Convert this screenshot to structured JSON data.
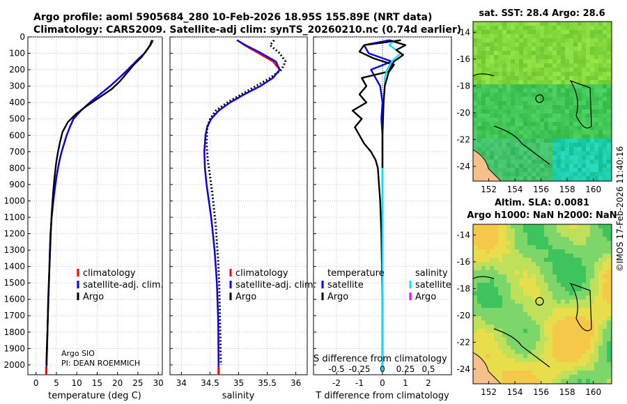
{
  "figure": {
    "title_line1": "Argo profile: aoml 5905684_280 10-Feb-2026 18.95S 155.89E (NRT data)",
    "title_line2": "Climatology: CARS2009. Satellite-adj clim: synTS_20260210.nc (0.74d earlier)",
    "credit": "©IMOS 17-Feb-2026 11:40:16",
    "float_info": [
      "Argo SIO",
      "PI: DEAN ROEMMICH"
    ]
  },
  "colors": {
    "climatology": "#ff0000",
    "satellite": "#0000ff",
    "argo": "#000000",
    "sat_salinity": "#00e5ff",
    "argo_salinity": "#ff00ff"
  },
  "chart_data": [
    {
      "type": "line",
      "id": "temperature",
      "xlabel": "temperature (deg C)",
      "ylabel": "",
      "xlim": [
        -2,
        31
      ],
      "ylim": [
        2060,
        0
      ],
      "xticks": [
        0,
        5,
        10,
        15,
        20,
        25,
        30
      ],
      "yticks": [
        0,
        100,
        200,
        300,
        400,
        500,
        600,
        700,
        800,
        900,
        1000,
        1100,
        1200,
        1300,
        1400,
        1500,
        1600,
        1700,
        1800,
        1900,
        2000
      ],
      "legend": [
        "climatology",
        "satellite-adj. clim.",
        "Argo"
      ],
      "series": [
        {
          "name": "climatology",
          "color": "#ff0000",
          "x": [
            28.4,
            28.0,
            26.6,
            24.5,
            22.5,
            20.4,
            18.2,
            15.7,
            13.2,
            11.0,
            9.2,
            8.3,
            7.5,
            6.9,
            6.3,
            5.8,
            5.4,
            5.05,
            4.75,
            4.5,
            4.25,
            4.05,
            3.85,
            3.7,
            3.55,
            3.4,
            3.28,
            3.15,
            3.0,
            2.9,
            2.8,
            2.72,
            2.65,
            2.6,
            2.55,
            2.5
          ],
          "y": [
            20,
            50,
            100,
            150,
            200,
            250,
            300,
            350,
            400,
            450,
            500,
            550,
            600,
            650,
            700,
            750,
            800,
            850,
            900,
            950,
            1000,
            1050,
            1100,
            1150,
            1200,
            1300,
            1400,
            1500,
            1600,
            1700,
            1800,
            1900,
            1950,
            2000,
            2030,
            2045
          ]
        },
        {
          "name": "satellite-adj. clim.",
          "color": "#0000ff",
          "x": [
            28.7,
            28.1,
            26.6,
            24.5,
            22.5,
            20.4,
            18.2,
            15.7,
            13.2,
            11.0,
            9.2,
            8.3,
            7.5,
            6.9,
            6.3,
            5.8,
            5.4,
            5.05,
            4.75,
            4.5,
            4.25,
            4.05,
            3.85,
            3.7,
            3.55,
            3.4,
            3.28,
            3.15,
            3.0,
            2.9,
            2.8,
            2.72,
            2.65,
            2.6,
            2.55,
            2.5
          ],
          "y": [
            20,
            50,
            100,
            150,
            200,
            250,
            300,
            350,
            400,
            450,
            500,
            550,
            600,
            650,
            700,
            750,
            800,
            850,
            900,
            950,
            1000,
            1050,
            1100,
            1150,
            1200,
            1300,
            1400,
            1500,
            1600,
            1700,
            1800,
            1900,
            1950,
            2000,
            2030,
            2045
          ]
        },
        {
          "name": "Argo",
          "color": "#000000",
          "x": [
            28.5,
            28.0,
            27.2,
            26.0,
            24.0,
            22.3,
            20.6,
            18.5,
            15.5,
            12.5,
            9.8,
            7.8,
            6.5,
            5.9,
            5.4,
            5.0,
            4.7,
            4.45,
            4.2,
            4.0,
            3.8,
            3.62,
            3.48,
            3.32,
            3.18,
            3.05,
            2.92,
            2.8,
            2.72,
            2.65,
            2.58,
            2.55
          ],
          "y": [
            20,
            50,
            80,
            120,
            170,
            220,
            270,
            320,
            370,
            420,
            470,
            520,
            580,
            640,
            700,
            760,
            820,
            880,
            950,
            1020,
            1100,
            1200,
            1300,
            1400,
            1500,
            1600,
            1700,
            1800,
            1850,
            1900,
            1950,
            2000
          ]
        }
      ]
    },
    {
      "type": "line",
      "id": "salinity",
      "xlabel": "salinity",
      "ylabel": "",
      "xlim": [
        33.8,
        36.2
      ],
      "ylim": [
        2060,
        0
      ],
      "xticks": [
        34,
        34.5,
        35,
        35.5,
        36
      ],
      "legend": [
        "climatology",
        "satellite-adj. clim.",
        "Argo"
      ],
      "series": [
        {
          "name": "climatology",
          "color": "#ff0000",
          "x": [
            34.98,
            35.1,
            35.35,
            35.6,
            35.72,
            35.6,
            35.38,
            35.1,
            34.85,
            34.65,
            34.52,
            34.45,
            34.42,
            34.4,
            34.41,
            34.44,
            34.48,
            34.52,
            34.55,
            34.58,
            34.6,
            34.62,
            34.63,
            34.64,
            34.645,
            34.65
          ],
          "y": [
            20,
            50,
            100,
            150,
            200,
            250,
            300,
            350,
            400,
            450,
            500,
            550,
            600,
            700,
            800,
            900,
            1000,
            1100,
            1200,
            1300,
            1400,
            1500,
            1600,
            1700,
            1800,
            2040
          ]
        },
        {
          "name": "satellite-adj. clim.",
          "color": "#0000ff",
          "x": [
            34.97,
            35.12,
            35.4,
            35.65,
            35.72,
            35.6,
            35.38,
            35.1,
            34.85,
            34.65,
            34.52,
            34.45,
            34.42,
            34.4,
            34.41,
            34.44,
            34.48,
            34.52,
            34.55,
            34.58,
            34.6,
            34.62,
            34.63,
            34.64,
            34.645,
            34.65
          ],
          "y": [
            20,
            50,
            100,
            150,
            200,
            250,
            300,
            350,
            400,
            450,
            500,
            550,
            600,
            700,
            800,
            900,
            1000,
            1100,
            1200,
            1300,
            1400,
            1500,
            1600,
            1700,
            1800,
            2040
          ]
        },
        {
          "name": "Argo",
          "color": "#000000",
          "x": [
            35.62,
            35.55,
            35.72,
            35.82,
            35.75,
            35.55,
            35.3,
            35.05,
            34.8,
            34.6,
            34.5,
            34.45,
            34.44,
            34.46,
            34.5,
            34.54,
            34.57,
            34.6,
            34.62,
            34.64,
            34.66,
            34.67,
            34.68,
            34.685,
            34.69
          ],
          "y": [
            20,
            50,
            100,
            150,
            200,
            250,
            300,
            350,
            400,
            450,
            500,
            550,
            650,
            750,
            850,
            950,
            1050,
            1150,
            1250,
            1350,
            1500,
            1650,
            1800,
            1900,
            2000
          ]
        }
      ]
    },
    {
      "type": "line",
      "id": "difference",
      "xlabel": "T difference from climatology",
      "xlabel_top": "S difference from climatology",
      "xlim": [
        -3,
        3
      ],
      "ylim": [
        2060,
        0
      ],
      "xticks": [
        -2,
        -1,
        0,
        1,
        2
      ],
      "top_ticks": [
        {
          "label": "-0.5",
          "x": -2
        },
        {
          "label": "-0.25",
          "x": -1
        },
        {
          "label": "0",
          "x": 0
        },
        {
          "label": "0.25",
          "x": 1
        },
        {
          "label": "0.5",
          "x": 2
        }
      ],
      "legend_temperature": {
        "title": "temperature",
        "items": [
          "satellite",
          "Argo"
        ]
      },
      "legend_salinity": {
        "title": "salinity",
        "items": [
          "satellite",
          "Argo"
        ]
      },
      "series": [
        {
          "name": "T satellite",
          "color": "#0000ff",
          "x": [
            0.3,
            -0.8,
            -0.6,
            0.4,
            -0.5,
            -0.3,
            -0.1,
            -0.05,
            0,
            -0.05,
            0,
            0,
            0,
            0,
            0
          ],
          "y": [
            20,
            50,
            100,
            150,
            200,
            250,
            300,
            350,
            400,
            500,
            600,
            800,
            1000,
            1500,
            2040
          ]
        },
        {
          "name": "T Argo",
          "color": "#000000",
          "x": [
            0.8,
            -0.8,
            -1.0,
            -0.4,
            0.5,
            0.3,
            -0.9,
            -0.7,
            -1.0,
            -0.7,
            -1.3,
            -0.9,
            -1.2,
            -1.0,
            -0.8,
            -0.5,
            -0.3,
            -0.2,
            -0.15,
            -0.1,
            -0.05,
            0.0,
            0.0
          ],
          "y": [
            20,
            50,
            90,
            130,
            170,
            210,
            250,
            300,
            350,
            400,
            450,
            500,
            550,
            600,
            650,
            700,
            750,
            800,
            900,
            1000,
            1200,
            1600,
            2000
          ]
        },
        {
          "name": "S satellite",
          "color": "#00e5ff",
          "x": [
            0.5,
            0.3,
            0.8,
            0.4,
            0.2,
            0.1,
            0.1,
            0.05,
            0,
            0,
            0,
            0,
            0
          ],
          "y": [
            20,
            50,
            100,
            150,
            200,
            250,
            300,
            400,
            600,
            800,
            1000,
            1500,
            2040
          ]
        },
        {
          "name": "S Argo",
          "color": "#000000",
          "x": [
            0.3,
            1.0,
            0.6,
            0.9,
            0.5,
            0.3,
            0.2,
            0.1,
            0.05,
            0,
            0
          ],
          "y": [
            20,
            50,
            80,
            110,
            150,
            200,
            250,
            300,
            400,
            600,
            800
          ]
        }
      ]
    },
    {
      "type": "heatmap",
      "id": "sst_map",
      "title": "sat. SST: 28.4 Argo: 28.6",
      "xticks": [
        152,
        154,
        156,
        158,
        160
      ],
      "yticks": [
        -14,
        -16,
        -18,
        -20,
        -22,
        -24
      ],
      "xlim": [
        150.8,
        161.4
      ],
      "ylim": [
        -25.1,
        -13.2
      ],
      "marker": {
        "lon": 155.89,
        "lat": -18.95
      }
    },
    {
      "type": "heatmap",
      "id": "sla_map",
      "title": "Altim. SLA: 0.0081",
      "subtitle": "Argo h1000: NaN h2000: NaN",
      "xticks": [
        152,
        154,
        156,
        158,
        160
      ],
      "yticks": [
        -14,
        -16,
        -18,
        -20,
        -22,
        -24
      ],
      "xlim": [
        150.8,
        161.4
      ],
      "ylim": [
        -25.1,
        -13.2
      ],
      "marker": {
        "lon": 155.89,
        "lat": -18.95
      }
    }
  ]
}
